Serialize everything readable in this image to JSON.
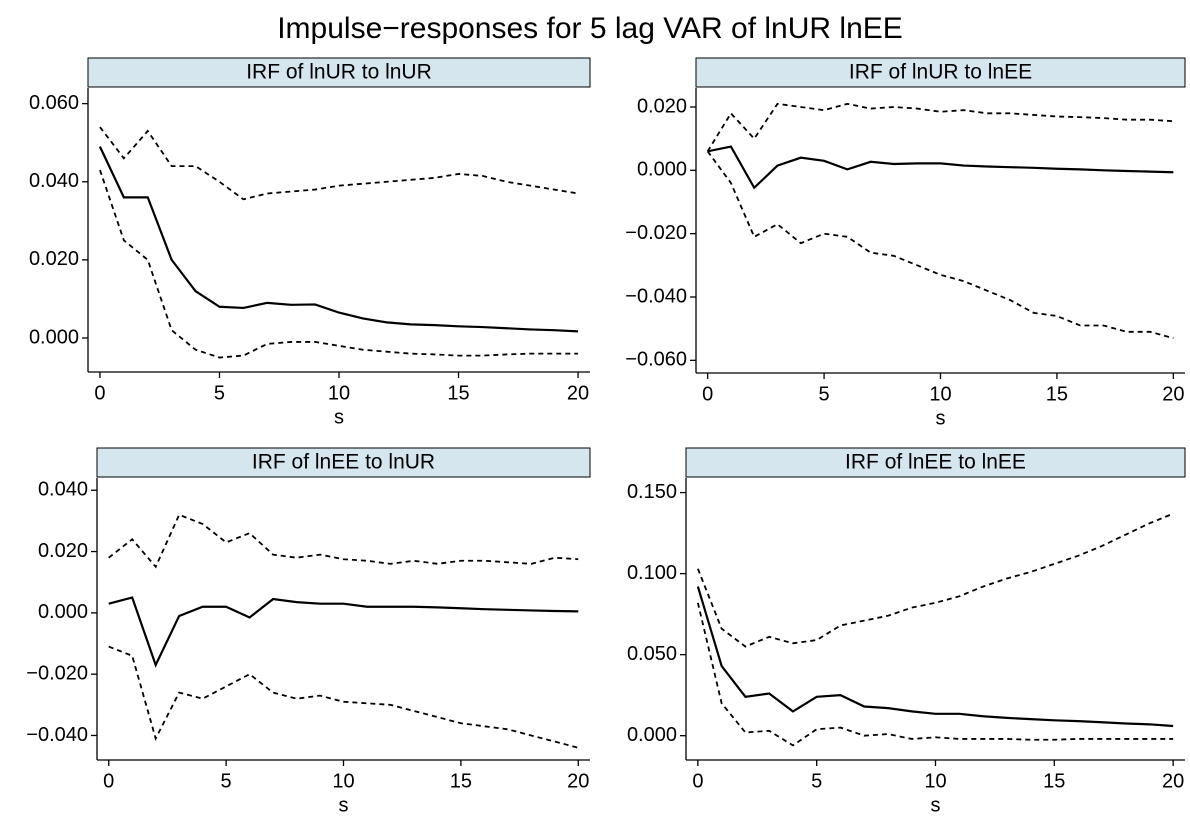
{
  "title": "Impulse−responses for 5 lag VAR of lnUR lnEE",
  "chart_data": [
    {
      "type": "line",
      "title": "IRF of lnUR to lnUR",
      "xlabel": "s",
      "x": [
        0,
        1,
        2,
        3,
        4,
        5,
        6,
        7,
        8,
        9,
        10,
        11,
        12,
        13,
        14,
        15,
        16,
        17,
        18,
        19,
        20
      ],
      "xlim": [
        -0.5,
        20.5
      ],
      "xticks": [
        0,
        5,
        10,
        15,
        20
      ],
      "ylim": [
        -0.0087,
        0.064
      ],
      "yticks": [
        {
          "value": 0,
          "label": "0.000"
        },
        {
          "value": 0.02,
          "label": "0.020"
        },
        {
          "value": 0.04,
          "label": "0.040"
        },
        {
          "value": 0.06,
          "label": "0.060"
        }
      ],
      "series": [
        {
          "color": "#000000",
          "dash": "solid",
          "values": [
            0.049,
            0.036,
            0.036,
            0.02,
            0.012,
            0.008,
            0.0077,
            0.009,
            0.0085,
            0.0086,
            0.0065,
            0.005,
            0.004,
            0.0035,
            0.0033,
            0.003,
            0.0028,
            0.0025,
            0.0022,
            0.002,
            0.0017
          ]
        },
        {
          "color": "#000000",
          "dash": "dashed",
          "values": [
            0.043,
            0.025,
            0.02,
            0.002,
            -0.003,
            -0.005,
            -0.0045,
            -0.0015,
            -0.001,
            -0.001,
            -0.002,
            -0.003,
            -0.0035,
            -0.004,
            -0.0042,
            -0.0045,
            -0.0045,
            -0.0042,
            -0.004,
            -0.004,
            -0.004
          ]
        },
        {
          "color": "#000000",
          "dash": "dashed",
          "values": [
            0.054,
            0.046,
            0.053,
            0.044,
            0.044,
            0.04,
            0.0355,
            0.037,
            0.0375,
            0.038,
            0.039,
            0.0395,
            0.04,
            0.0405,
            0.041,
            0.042,
            0.0415,
            0.04,
            0.039,
            0.038,
            0.037
          ]
        }
      ]
    },
    {
      "type": "line",
      "title": "IRF of lnUR to lnEE",
      "xlabel": "s",
      "x": [
        0,
        1,
        2,
        3,
        4,
        5,
        6,
        7,
        8,
        9,
        10,
        11,
        12,
        13,
        14,
        15,
        16,
        17,
        18,
        19,
        20
      ],
      "xlim": [
        -0.5,
        20.5
      ],
      "xticks": [
        0,
        5,
        10,
        15,
        20
      ],
      "ylim": [
        -0.064,
        0.026
      ],
      "yticks": [
        {
          "value": -0.06,
          "label": "−0.060"
        },
        {
          "value": -0.04,
          "label": "−0.040"
        },
        {
          "value": -0.02,
          "label": "−0.020"
        },
        {
          "value": 0,
          "label": "0.000"
        },
        {
          "value": 0.02,
          "label": "0.020"
        }
      ],
      "series": [
        {
          "color": "#000000",
          "dash": "solid",
          "values": [
            0.006,
            0.0075,
            -0.0055,
            0.0015,
            0.004,
            0.003,
            0.0003,
            0.0027,
            0.002,
            0.0022,
            0.0022,
            0.0015,
            0.0012,
            0.001,
            0.0008,
            0.0005,
            0.0003,
            0.0,
            -0.0002,
            -0.0004,
            -0.0006
          ]
        },
        {
          "color": "#000000",
          "dash": "dashed",
          "values": [
            0.006,
            -0.004,
            -0.021,
            -0.017,
            -0.023,
            -0.02,
            -0.021,
            -0.026,
            -0.027,
            -0.03,
            -0.033,
            -0.035,
            -0.038,
            -0.041,
            -0.045,
            -0.046,
            -0.049,
            -0.049,
            -0.051,
            -0.051,
            -0.053
          ]
        },
        {
          "color": "#000000",
          "dash": "dashed",
          "values": [
            0.006,
            0.018,
            0.01,
            0.021,
            0.02,
            0.019,
            0.021,
            0.0195,
            0.02,
            0.0195,
            0.0185,
            0.019,
            0.018,
            0.018,
            0.0175,
            0.017,
            0.0168,
            0.0165,
            0.016,
            0.016,
            0.0155
          ]
        }
      ]
    },
    {
      "type": "line",
      "title": "IRF of lnEE to lnUR",
      "xlabel": "s",
      "x": [
        0,
        1,
        2,
        3,
        4,
        5,
        6,
        7,
        8,
        9,
        10,
        11,
        12,
        13,
        14,
        15,
        16,
        17,
        18,
        19,
        20
      ],
      "xlim": [
        -0.5,
        20.5
      ],
      "xticks": [
        0,
        5,
        10,
        15,
        20
      ],
      "ylim": [
        -0.048,
        0.044
      ],
      "yticks": [
        {
          "value": -0.04,
          "label": "−0.040"
        },
        {
          "value": -0.02,
          "label": "−0.020"
        },
        {
          "value": 0,
          "label": "0.000"
        },
        {
          "value": 0.02,
          "label": "0.020"
        },
        {
          "value": 0.04,
          "label": "0.040"
        }
      ],
      "series": [
        {
          "color": "#000000",
          "dash": "solid",
          "values": [
            0.003,
            0.005,
            -0.017,
            -0.001,
            0.002,
            0.002,
            -0.0015,
            0.0045,
            0.0035,
            0.003,
            0.003,
            0.002,
            0.002,
            0.002,
            0.0018,
            0.0015,
            0.0012,
            0.001,
            0.0008,
            0.0006,
            0.0005
          ]
        },
        {
          "color": "#000000",
          "dash": "dashed",
          "values": [
            -0.011,
            -0.014,
            -0.041,
            -0.026,
            -0.028,
            -0.024,
            -0.02,
            -0.026,
            -0.028,
            -0.027,
            -0.029,
            -0.0295,
            -0.03,
            -0.032,
            -0.034,
            -0.036,
            -0.037,
            -0.038,
            -0.04,
            -0.042,
            -0.044
          ]
        },
        {
          "color": "#000000",
          "dash": "dashed",
          "values": [
            0.018,
            0.024,
            0.015,
            0.032,
            0.029,
            0.023,
            0.026,
            0.019,
            0.018,
            0.019,
            0.0175,
            0.017,
            0.016,
            0.017,
            0.016,
            0.017,
            0.017,
            0.0165,
            0.016,
            0.018,
            0.0175
          ]
        }
      ]
    },
    {
      "type": "line",
      "title": "IRF of lnEE to lnEE",
      "xlabel": "s",
      "x": [
        0,
        1,
        2,
        3,
        4,
        5,
        6,
        7,
        8,
        9,
        10,
        11,
        12,
        13,
        14,
        15,
        16,
        17,
        18,
        19,
        20
      ],
      "xlim": [
        -0.5,
        20.5
      ],
      "xticks": [
        0,
        5,
        10,
        15,
        20
      ],
      "ylim": [
        -0.015,
        0.159
      ],
      "yticks": [
        {
          "value": 0,
          "label": "0.000"
        },
        {
          "value": 0.05,
          "label": "0.050"
        },
        {
          "value": 0.1,
          "label": "0.100"
        },
        {
          "value": 0.15,
          "label": "0.150"
        }
      ],
      "series": [
        {
          "color": "#000000",
          "dash": "solid",
          "values": [
            0.092,
            0.043,
            0.024,
            0.026,
            0.015,
            0.024,
            0.025,
            0.018,
            0.017,
            0.015,
            0.0135,
            0.0135,
            0.012,
            0.011,
            0.0102,
            0.0095,
            0.009,
            0.0083,
            0.0075,
            0.007,
            0.006
          ]
        },
        {
          "color": "#000000",
          "dash": "dashed",
          "values": [
            0.082,
            0.02,
            0.002,
            0.003,
            -0.006,
            0.004,
            0.005,
            0.0,
            0.001,
            -0.002,
            -0.001,
            -0.002,
            -0.002,
            -0.002,
            -0.0025,
            -0.0025,
            -0.002,
            -0.002,
            -0.002,
            -0.002,
            -0.002
          ]
        },
        {
          "color": "#000000",
          "dash": "dashed",
          "values": [
            0.103,
            0.066,
            0.055,
            0.061,
            0.057,
            0.059,
            0.068,
            0.071,
            0.074,
            0.079,
            0.082,
            0.086,
            0.092,
            0.097,
            0.101,
            0.106,
            0.111,
            0.117,
            0.124,
            0.131,
            0.137
          ]
        }
      ]
    }
  ]
}
